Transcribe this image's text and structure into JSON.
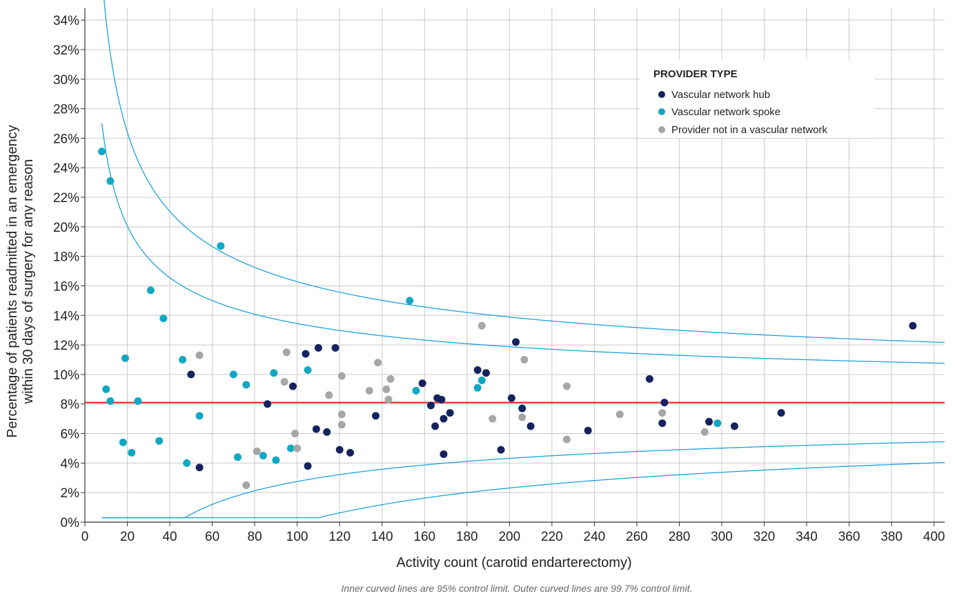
{
  "colors": {
    "hub": "#14235f",
    "spoke": "#12a8c4",
    "other": "#a6a6a6",
    "average": "#e8201f",
    "control": "#1aa3d8",
    "grid": "#c8c8c8"
  },
  "chart_data": {
    "type": "scatter",
    "xlabel": "Activity count (carotid endarterectomy)",
    "ylabel_line1": "Percentage of patients readmitted in an emergency",
    "ylabel_line2": "within 30 days of surgery for any reason",
    "xlim": [
      0,
      405
    ],
    "ylim": [
      0,
      34.8
    ],
    "x_ticks": [
      0,
      20,
      40,
      60,
      80,
      100,
      120,
      140,
      160,
      180,
      200,
      220,
      240,
      260,
      280,
      300,
      320,
      340,
      360,
      380,
      400
    ],
    "y_ticks": [
      0,
      2,
      4,
      6,
      8,
      10,
      12,
      14,
      16,
      18,
      20,
      22,
      24,
      26,
      28,
      30,
      32,
      34
    ],
    "y_tick_suffix": "%",
    "grid": true,
    "legend": {
      "title": "PROVIDER TYPE",
      "placement": "top-right",
      "entries": [
        "Vascular network hub",
        "Vascular network spoke",
        "Provider not in a vascular network"
      ]
    },
    "footnote": "Inner curved lines are 95% control limit. Outer curved lines are 99.7% control limit.",
    "average_line": 8.1,
    "control_limits": {
      "mean": 8.1,
      "n_start": 8
    },
    "series": [
      {
        "name": "Vascular network hub",
        "points": [
          [
            50,
            10.0
          ],
          [
            54,
            3.7
          ],
          [
            86,
            8.0
          ],
          [
            98,
            9.2
          ],
          [
            104,
            11.4
          ],
          [
            105,
            3.8
          ],
          [
            109,
            6.3
          ],
          [
            110,
            11.8
          ],
          [
            114,
            6.1
          ],
          [
            118,
            11.8
          ],
          [
            120,
            4.9
          ],
          [
            125,
            4.7
          ],
          [
            137,
            7.2
          ],
          [
            159,
            9.4
          ],
          [
            163,
            7.9
          ],
          [
            165,
            6.5
          ],
          [
            166,
            8.4
          ],
          [
            168,
            8.3
          ],
          [
            169,
            7.0
          ],
          [
            169,
            4.6
          ],
          [
            172,
            7.4
          ],
          [
            185,
            10.3
          ],
          [
            189,
            10.1
          ],
          [
            196,
            4.9
          ],
          [
            201,
            8.4
          ],
          [
            203,
            12.2
          ],
          [
            206,
            7.7
          ],
          [
            210,
            6.5
          ],
          [
            237,
            6.2
          ],
          [
            266,
            9.7
          ],
          [
            272,
            6.7
          ],
          [
            273,
            8.1
          ],
          [
            294,
            6.8
          ],
          [
            306,
            6.5
          ],
          [
            328,
            7.4
          ],
          [
            390,
            13.3
          ]
        ]
      },
      {
        "name": "Vascular network spoke",
        "points": [
          [
            8,
            25.1
          ],
          [
            10,
            9.0
          ],
          [
            12,
            8.2
          ],
          [
            12,
            23.1
          ],
          [
            18,
            5.4
          ],
          [
            19,
            11.1
          ],
          [
            22,
            4.7
          ],
          [
            25,
            8.2
          ],
          [
            31,
            15.7
          ],
          [
            35,
            5.5
          ],
          [
            37,
            13.8
          ],
          [
            46,
            11.0
          ],
          [
            48,
            4.0
          ],
          [
            54,
            7.2
          ],
          [
            64,
            18.7
          ],
          [
            70,
            10.0
          ],
          [
            72,
            4.4
          ],
          [
            76,
            9.3
          ],
          [
            84,
            4.5
          ],
          [
            89,
            10.1
          ],
          [
            90,
            4.2
          ],
          [
            97,
            5.0
          ],
          [
            105,
            10.3
          ],
          [
            153,
            15.0
          ],
          [
            156,
            8.9
          ],
          [
            185,
            9.1
          ],
          [
            187,
            9.6
          ],
          [
            298,
            6.7
          ]
        ]
      },
      {
        "name": "Provider not in a vascular network",
        "points": [
          [
            54,
            11.3
          ],
          [
            76,
            2.5
          ],
          [
            81,
            4.8
          ],
          [
            94,
            9.5
          ],
          [
            95,
            11.5
          ],
          [
            99,
            6.0
          ],
          [
            100,
            5.0
          ],
          [
            115,
            8.6
          ],
          [
            121,
            9.9
          ],
          [
            121,
            7.3
          ],
          [
            121,
            6.6
          ],
          [
            134,
            8.9
          ],
          [
            138,
            10.8
          ],
          [
            142,
            9.0
          ],
          [
            143,
            8.3
          ],
          [
            144,
            9.7
          ],
          [
            187,
            13.3
          ],
          [
            192,
            7.0
          ],
          [
            206,
            7.1
          ],
          [
            207,
            11.0
          ],
          [
            227,
            5.6
          ],
          [
            227,
            9.2
          ],
          [
            252,
            7.3
          ],
          [
            272,
            7.4
          ],
          [
            292,
            6.1
          ]
        ]
      }
    ]
  }
}
